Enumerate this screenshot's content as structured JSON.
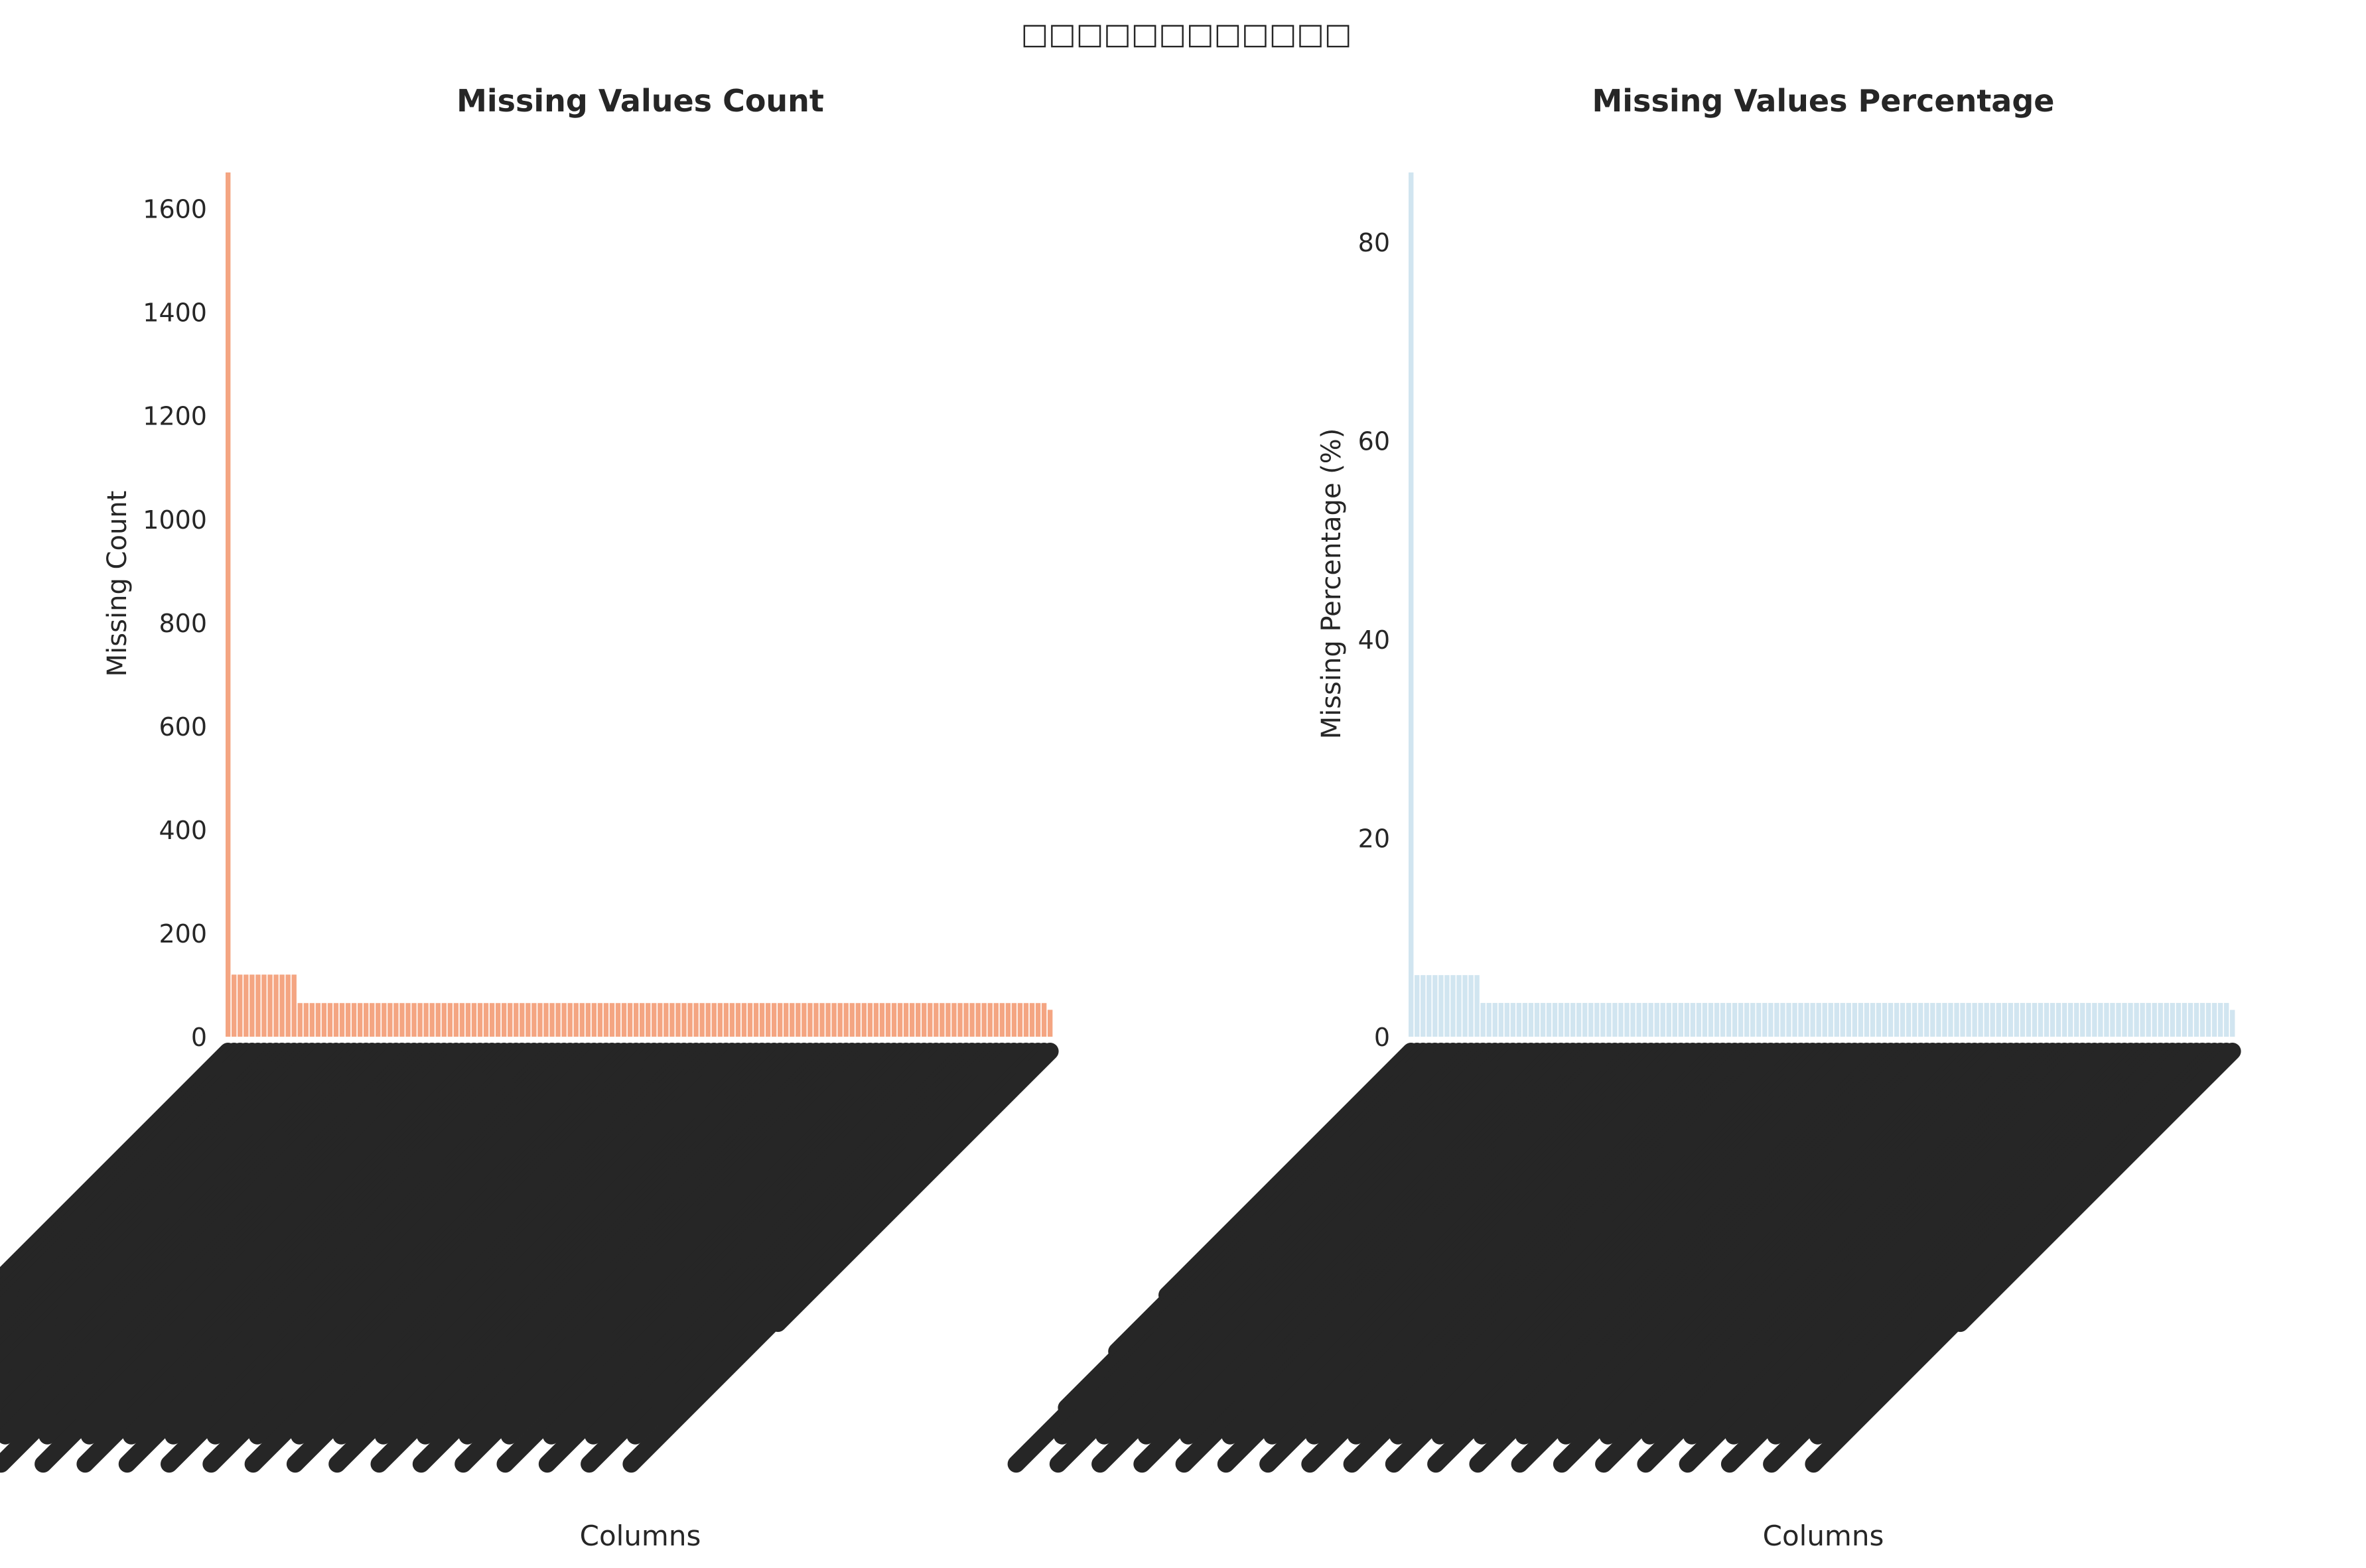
{
  "suptitle": "□□□□□□□□□□□□",
  "chart_data": [
    {
      "type": "bar",
      "title": "Missing Values Count",
      "xlabel": "Columns",
      "ylabel": "Missing Count",
      "ylim": [
        0,
        1670
      ],
      "yticks": [
        0,
        200,
        400,
        600,
        800,
        1000,
        1200,
        1400,
        1600
      ],
      "color": "#f4a582",
      "edgecolor": "#ffffff",
      "grid": false,
      "bar_groups": [
        {
          "value": 1670,
          "count": 1
        },
        {
          "value": 120,
          "count": 11
        },
        {
          "value": 65,
          "count": 125
        },
        {
          "value": 52,
          "count": 1
        }
      ],
      "tick_labels_legible": false
    },
    {
      "type": "bar",
      "title": "Missing Values Percentage",
      "xlabel": "Columns",
      "ylabel": "Missing Percentage (%)",
      "ylim": [
        0,
        87
      ],
      "yticks": [
        0,
        20,
        40,
        60,
        80
      ],
      "color": "#d1e5f0",
      "edgecolor": "#ffffff",
      "grid": false,
      "bar_groups": [
        {
          "value": 87,
          "count": 1
        },
        {
          "value": 6.2,
          "count": 11
        },
        {
          "value": 3.4,
          "count": 125
        },
        {
          "value": 2.7,
          "count": 1
        }
      ],
      "tick_labels_legible": false
    }
  ]
}
